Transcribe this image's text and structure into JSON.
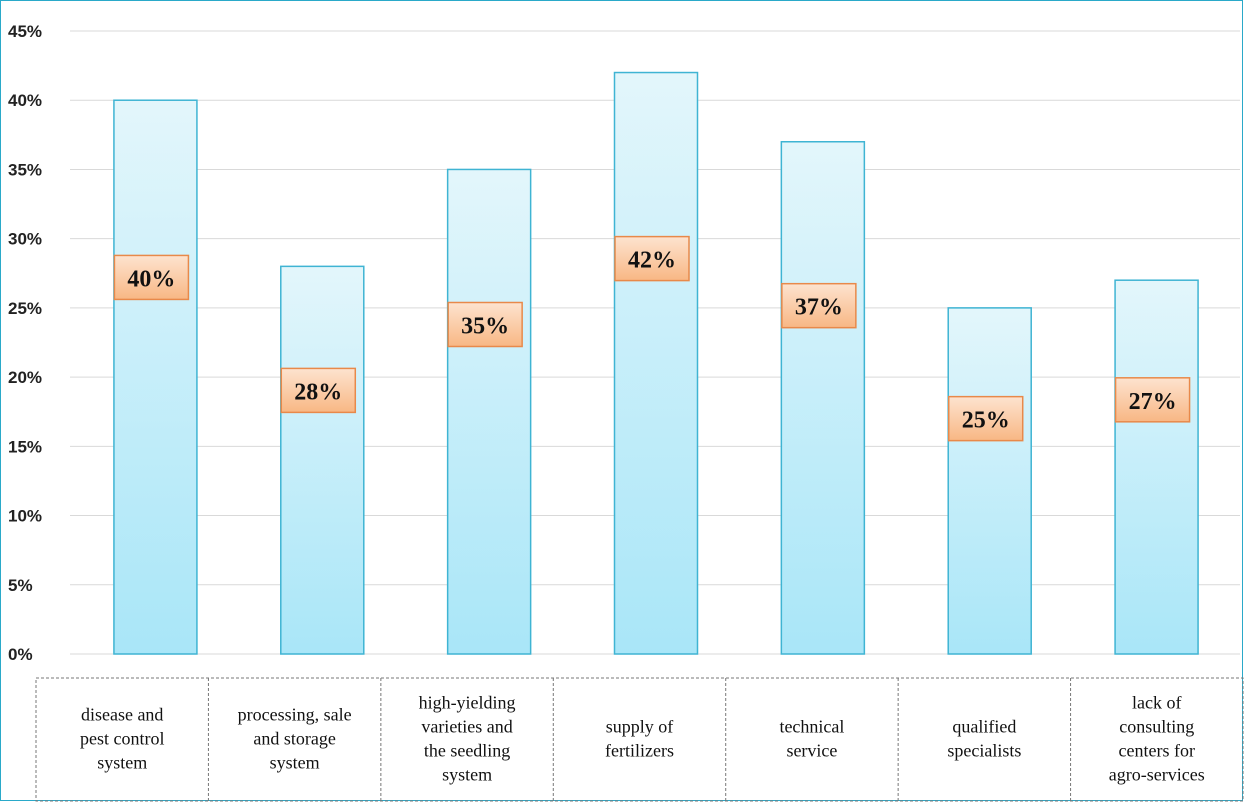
{
  "chart_data": {
    "type": "bar",
    "categories": [
      [
        "disease and",
        "pest control",
        "system"
      ],
      [
        "processing, sale",
        "and storage",
        "system"
      ],
      [
        "high-yielding",
        "varieties and",
        "the seedling",
        "system"
      ],
      [
        "supply of",
        "fertilizers"
      ],
      [
        "technical",
        "service"
      ],
      [
        "qualified",
        "specialists"
      ],
      [
        "lack of",
        "consulting",
        "centers for",
        "agro-services"
      ]
    ],
    "values": [
      40,
      28,
      35,
      42,
      37,
      25,
      27
    ],
    "data_labels": [
      "40%",
      "28%",
      "35%",
      "42%",
      "37%",
      "25%",
      "27%"
    ],
    "yticks": [
      0,
      5,
      10,
      15,
      20,
      25,
      30,
      35,
      40,
      45
    ],
    "ytick_labels": [
      "0%",
      "5%",
      "10%",
      "15%",
      "20%",
      "25%",
      "30%",
      "35%",
      "40%",
      "45%"
    ],
    "ylim": [
      0,
      45
    ],
    "grid": true,
    "legend": "none",
    "colors": {
      "bar_top": "#e3f6fb",
      "bar_bottom": "#a9e6f8",
      "bar_stroke": "#3fb4d3",
      "label_fill_top": "#fde3cf",
      "label_fill_bottom": "#f8b784",
      "label_stroke": "#e8894a",
      "grid": "#d9d9d9",
      "frame": "#2aa9c9"
    }
  }
}
